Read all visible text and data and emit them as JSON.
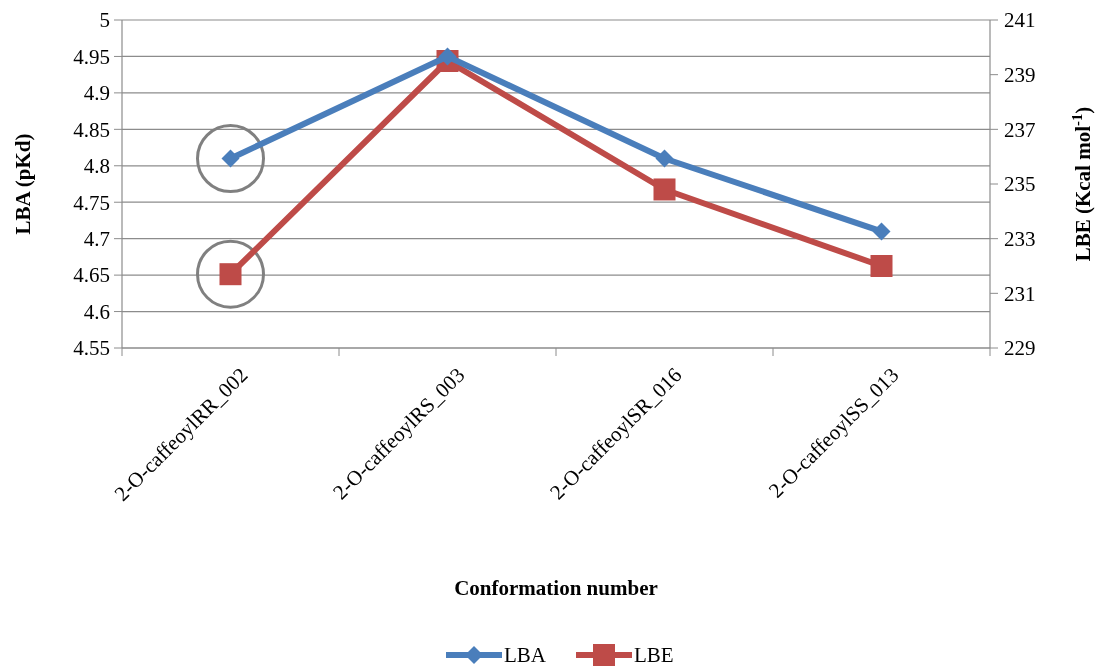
{
  "chart_data": {
    "type": "line",
    "xlabel": "Conformation number",
    "ylabel": "LBA (p$_{}$Kd)",
    "y2label": "LBE (Kcal mol$^{-1}$)",
    "categories": [
      "2-O-caffeoylRR_002",
      "2-O-caffeoylRS_003",
      "2-O-caffeoylSR_016",
      "2-O-caffeoylSS_013"
    ],
    "series": [
      {
        "name": "LBA",
        "color": "#4a7ebb",
        "marker": "diamond",
        "values": [
          4.81,
          4.95,
          4.81,
          4.71
        ]
      },
      {
        "name": "LBE",
        "color": "#be4b48",
        "marker": "square",
        "axis": "y2",
        "values": [
          231.7,
          239.5,
          234.8,
          232.0
        ]
      }
    ],
    "ylim": [
      4.55,
      5
    ],
    "yticks": [
      4.55,
      4.6,
      4.65,
      4.7,
      4.75,
      4.8,
      4.85,
      4.9,
      4.95,
      5
    ],
    "y2lim": [
      229,
      241
    ],
    "y2ticks": [
      229,
      231,
      233,
      235,
      237,
      239,
      241
    ],
    "grid": "y",
    "legend": "bottom"
  }
}
